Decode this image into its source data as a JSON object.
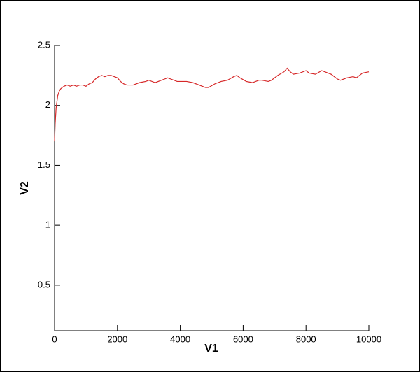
{
  "chart_data": {
    "type": "line",
    "x_label": "V1",
    "y_label": "V2",
    "x": [
      0,
      20,
      50,
      100,
      150,
      200,
      300,
      400,
      500,
      600,
      700,
      800,
      900,
      1000,
      1100,
      1200,
      1300,
      1400,
      1500,
      1600,
      1700,
      1800,
      1900,
      2000,
      2100,
      2200,
      2300,
      2500,
      2700,
      2900,
      3000,
      3200,
      3300,
      3500,
      3600,
      3700,
      3900,
      4000,
      4200,
      4400,
      4600,
      4800,
      4900,
      5100,
      5300,
      5500,
      5700,
      5800,
      5900,
      6100,
      6300,
      6500,
      6600,
      6800,
      6900,
      7100,
      7300,
      7400,
      7500,
      7600,
      7800,
      8000,
      8100,
      8300,
      8500,
      8600,
      8800,
      9000,
      9100,
      9300,
      9500,
      9600,
      9800,
      10000
    ],
    "series": [
      {
        "name": "V2",
        "color": "#d62728",
        "values": [
          1.7,
          1.85,
          1.98,
          2.08,
          2.12,
          2.14,
          2.16,
          2.17,
          2.16,
          2.17,
          2.16,
          2.17,
          2.17,
          2.16,
          2.18,
          2.19,
          2.22,
          2.24,
          2.25,
          2.24,
          2.25,
          2.25,
          2.24,
          2.23,
          2.2,
          2.18,
          2.17,
          2.17,
          2.19,
          2.2,
          2.21,
          2.19,
          2.2,
          2.22,
          2.23,
          2.22,
          2.2,
          2.2,
          2.2,
          2.19,
          2.17,
          2.15,
          2.15,
          2.18,
          2.2,
          2.21,
          2.24,
          2.25,
          2.23,
          2.2,
          2.19,
          2.21,
          2.21,
          2.2,
          2.21,
          2.25,
          2.28,
          2.31,
          2.28,
          2.26,
          2.27,
          2.29,
          2.27,
          2.26,
          2.29,
          2.28,
          2.26,
          2.22,
          2.21,
          2.23,
          2.24,
          2.23,
          2.27,
          2.28
        ]
      }
    ],
    "xlim": [
      0,
      10000
    ],
    "xticks": [
      0,
      2000,
      4000,
      6000,
      8000,
      10000
    ],
    "ylim": [
      0.12,
      2.5
    ],
    "yticks": [
      0.5,
      1,
      1.5,
      2,
      2.5
    ]
  }
}
